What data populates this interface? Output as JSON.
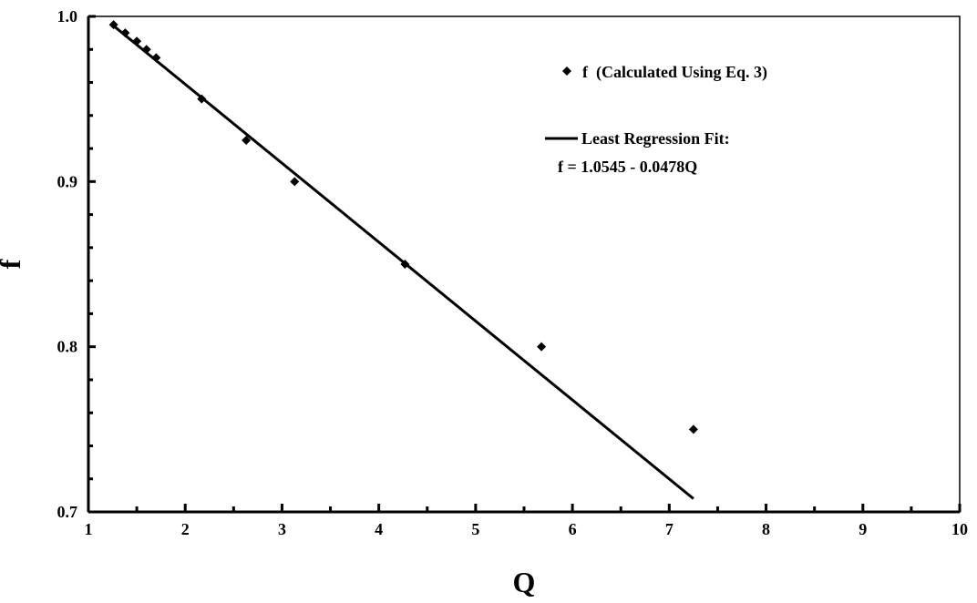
{
  "chart_data": {
    "type": "scatter",
    "xlabel": "Q",
    "ylabel": "f",
    "xlim": [
      1,
      10
    ],
    "ylim": [
      0.7,
      1.0
    ],
    "x_ticks": [
      "1",
      "2",
      "3",
      "4",
      "5",
      "6",
      "7",
      "8",
      "9",
      "10"
    ],
    "y_ticks": [
      "0.7",
      "0.8",
      "0.9",
      "1.0"
    ],
    "grid": false,
    "legend_position": "top-right",
    "series": [
      {
        "name": "f  (Calculated Using Eq. 3)",
        "kind": "markers",
        "marker": "diamond",
        "color": "#000000",
        "x": [
          1.26,
          1.38,
          1.5,
          1.6,
          1.7,
          2.17,
          2.63,
          3.13,
          4.27,
          5.68,
          7.25
        ],
        "y": [
          0.995,
          0.99,
          0.985,
          0.98,
          0.975,
          0.95,
          0.925,
          0.9,
          0.85,
          0.8,
          0.75
        ]
      },
      {
        "name": "Least Regression Fit:",
        "name_line2": "f = 1.0545 - 0.0478Q",
        "kind": "line",
        "color": "#000000",
        "x": [
          1.26,
          7.25
        ],
        "y": [
          0.9943,
          0.708
        ]
      }
    ]
  }
}
